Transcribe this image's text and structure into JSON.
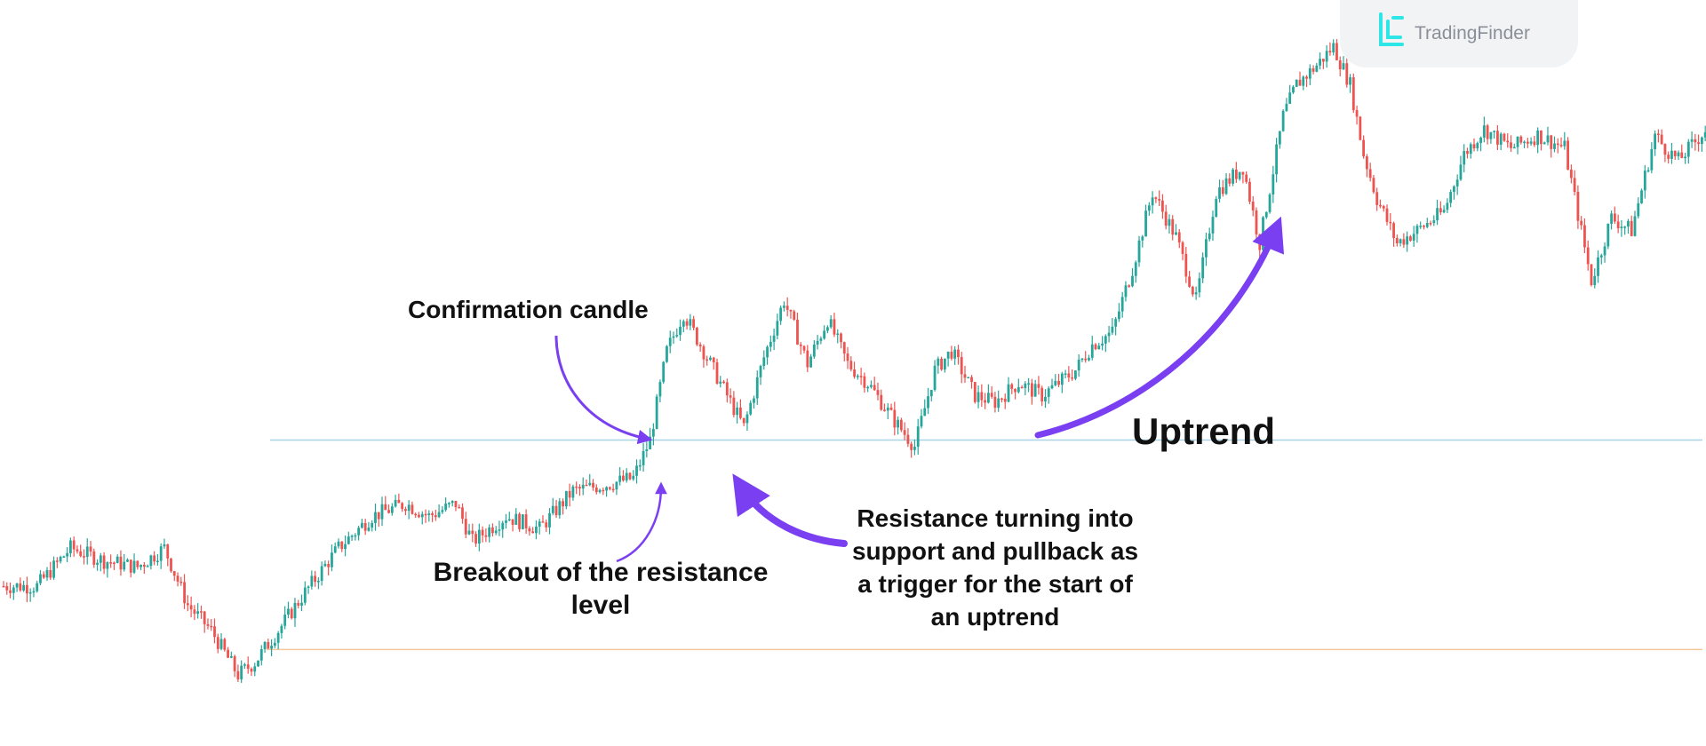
{
  "brand": {
    "name": "TradingFinder",
    "logo_color": "#2ee6e6"
  },
  "annotations": {
    "confirmation": "Confirmation candle",
    "breakout_line1": "Breakout of the resistance",
    "breakout_line2": "level",
    "resistance_line1": "Resistance turning into",
    "resistance_line2": "support and pullback as",
    "resistance_line3": "a trigger for the start of",
    "resistance_line4": "an uptrend",
    "uptrend": "Uptrend"
  },
  "colors": {
    "bullish": "#26a69a",
    "bearish": "#ef5350",
    "resistance_line": "#a8d4e6",
    "support_line": "#f5c89a",
    "arrow": "#7b3ff2"
  },
  "chart_data": {
    "type": "candlestick",
    "ylim": [
      0,
      100
    ],
    "levels": [
      {
        "kind": "resistance",
        "value": 37.0
      },
      {
        "kind": "support",
        "value": 4.0
      }
    ],
    "anchors": [
      [
        0,
        14
      ],
      [
        10,
        14
      ],
      [
        20,
        20
      ],
      [
        30,
        18
      ],
      [
        40,
        17
      ],
      [
        48,
        20
      ],
      [
        55,
        11
      ],
      [
        62,
        7
      ],
      [
        70,
        0
      ],
      [
        75,
        2
      ],
      [
        82,
        7
      ],
      [
        90,
        13
      ],
      [
        100,
        20
      ],
      [
        110,
        25
      ],
      [
        120,
        27
      ],
      [
        127,
        25
      ],
      [
        135,
        27
      ],
      [
        140,
        21
      ],
      [
        150,
        25
      ],
      [
        160,
        23
      ],
      [
        170,
        29
      ],
      [
        180,
        30
      ],
      [
        188,
        31
      ],
      [
        193,
        37
      ],
      [
        198,
        51
      ],
      [
        203,
        57
      ],
      [
        209,
        51
      ],
      [
        215,
        45
      ],
      [
        221,
        39
      ],
      [
        227,
        50
      ],
      [
        233,
        59
      ],
      [
        240,
        49
      ],
      [
        246,
        56
      ],
      [
        252,
        49
      ],
      [
        258,
        46
      ],
      [
        266,
        40
      ],
      [
        272,
        36
      ],
      [
        278,
        48
      ],
      [
        283,
        51
      ],
      [
        290,
        44
      ],
      [
        296,
        43
      ],
      [
        303,
        46
      ],
      [
        310,
        44
      ],
      [
        320,
        48
      ],
      [
        325,
        52
      ],
      [
        331,
        54
      ],
      [
        337,
        64
      ],
      [
        343,
        76
      ],
      [
        350,
        69
      ],
      [
        356,
        59
      ],
      [
        362,
        76
      ],
      [
        370,
        80
      ],
      [
        375,
        68
      ],
      [
        382,
        88
      ],
      [
        386,
        93
      ],
      [
        392,
        96
      ],
      [
        397,
        99
      ],
      [
        402,
        93
      ],
      [
        406,
        82
      ],
      [
        410,
        75
      ],
      [
        416,
        68
      ],
      [
        422,
        70
      ],
      [
        430,
        73
      ],
      [
        436,
        82
      ],
      [
        442,
        86
      ],
      [
        450,
        83
      ],
      [
        458,
        85
      ],
      [
        466,
        83
      ],
      [
        474,
        62
      ],
      [
        480,
        72
      ],
      [
        486,
        70
      ],
      [
        493,
        85
      ],
      [
        496,
        83
      ],
      [
        500,
        81
      ],
      [
        510,
        87
      ]
    ]
  }
}
